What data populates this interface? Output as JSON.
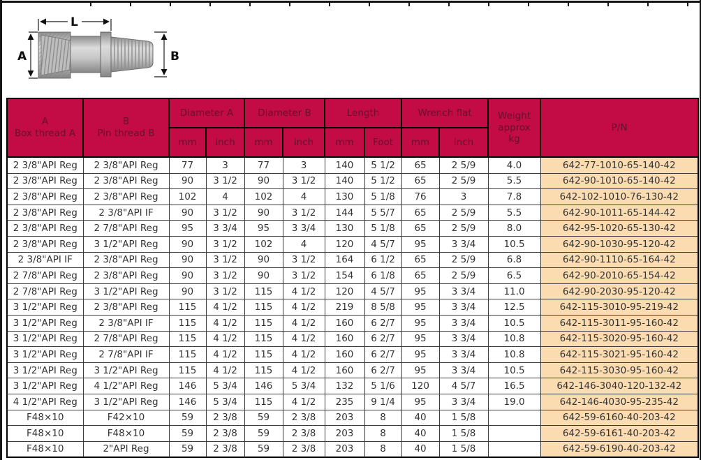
{
  "colors": {
    "header_bg": "#C30B45",
    "header_text": "#67102C",
    "pn_bg": "#FBDCB1",
    "body_text": "#333333",
    "frame": "#151515"
  },
  "diagram": {
    "label_a": "A",
    "label_b": "B",
    "label_l": "L"
  },
  "table": {
    "header": {
      "col_a": "A\nBox thread A",
      "col_b": "B\nPin thread B",
      "diameter_a": "Diameter A",
      "diameter_b": "Diameter B",
      "length": "Length",
      "wrench_flat": "Wrench flat",
      "weight": "Weight\napprox\nkg",
      "pn": "P/N",
      "units": [
        "mm",
        "inch",
        "mm",
        "inch",
        "mm",
        "Foot",
        "mm",
        "inch"
      ]
    },
    "col_keys": [
      "box-thread-a",
      "pin-thread-b",
      "dia-a-mm",
      "dia-a-inch",
      "dia-b-mm",
      "dia-b-inch",
      "length-mm",
      "length-foot",
      "wrench-mm",
      "wrench-inch",
      "weight-kg",
      "pn"
    ],
    "rows": [
      [
        "2 3/8\"API Reg",
        "2 3/8\"API Reg",
        "77",
        "3",
        "77",
        "3",
        "140",
        "5 1/2",
        "65",
        "2 5/9",
        "4.0",
        "642-77-1010-65-140-42"
      ],
      [
        "2 3/8\"API Reg",
        "2 3/8\"API Reg",
        "90",
        "3 1/2",
        "90",
        "3 1/2",
        "140",
        "5 1/2",
        "65",
        "2 5/9",
        "5.5",
        "642-90-1010-65-140-42"
      ],
      [
        "2 3/8\"API Reg",
        "2 3/8\"API Reg",
        "102",
        "4",
        "102",
        "4",
        "130",
        "5 1/8",
        "76",
        "3",
        "7.8",
        "642-102-1010-76-130-42"
      ],
      [
        "2 3/8\"API Reg",
        "2 3/8\"API IF",
        "90",
        "3 1/2",
        "90",
        "3 1/2",
        "144",
        "5 5/7",
        "65",
        "2 5/9",
        "5.5",
        "642-90-1011-65-144-42"
      ],
      [
        "2 3/8\"API Reg",
        "2 7/8\"API Reg",
        "95",
        "3 3/4",
        "95",
        "3 3/4",
        "130",
        "5 1/8",
        "65",
        "2 5/9",
        "8.0",
        "642-95-1020-65-130-42"
      ],
      [
        "2 3/8\"API Reg",
        "3 1/2\"API Reg",
        "90",
        "3 1/2",
        "102",
        "4",
        "120",
        "4 5/7",
        "95",
        "3 3/4",
        "10.5",
        "642-90-1030-95-120-42"
      ],
      [
        "2 3/8\"API IF",
        "2 3/8\"API Reg",
        "90",
        "3 1/2",
        "90",
        "3 1/2",
        "164",
        "6 1/2",
        "65",
        "2 5/9",
        "6.8",
        "642-90-1110-65-164-42"
      ],
      [
        "2 7/8\"API Reg",
        "2 3/8\"API Reg",
        "90",
        "3 1/2",
        "90",
        "3 1/2",
        "154",
        "6 1/8",
        "65",
        "2 5/9",
        "6.5",
        "642-90-2010-65-154-42"
      ],
      [
        "2 7/8\"API Reg",
        "3 1/2\"API Reg",
        "90",
        "3 1/2",
        "115",
        "4 1/2",
        "120",
        "4 5/7",
        "95",
        "3 3/4",
        "11.0",
        "642-90-2030-95-120-42"
      ],
      [
        "3 1/2\"API Reg",
        "2 3/8\"API Reg",
        "115",
        "4 1/2",
        "115",
        "4 1/2",
        "219",
        "8 5/8",
        "95",
        "3 3/4",
        "12.5",
        "642-115-3010-95-219-42"
      ],
      [
        "3 1/2\"API Reg",
        "2 3/8\"API IF",
        "115",
        "4 1/2",
        "115",
        "4 1/2",
        "160",
        "6 2/7",
        "95",
        "3 3/4",
        "10.5",
        "642-115-3011-95-160-42"
      ],
      [
        "3 1/2\"API Reg",
        "2 7/8\"API Reg",
        "115",
        "4 1/2",
        "115",
        "4 1/2",
        "160",
        "6 2/7",
        "95",
        "3 3/4",
        "10.8",
        "642-115-3020-95-160-42"
      ],
      [
        "3 1/2\"API Reg",
        "2 7/8\"API IF",
        "115",
        "4 1/2",
        "115",
        "4 1/2",
        "160",
        "6 2/7",
        "95",
        "3 3/4",
        "10.8",
        "642-115-3021-95-160-42"
      ],
      [
        "3 1/2\"API Reg",
        "3 1/2\"API Reg",
        "115",
        "4 1/2",
        "115",
        "4 1/2",
        "160",
        "6 2/7",
        "95",
        "3 3/4",
        "10.5",
        "642-115-3030-95-160-42"
      ],
      [
        "3 1/2\"API Reg",
        "4 1/2\"API Reg",
        "146",
        "5 3/4",
        "146",
        "5 3/4",
        "132",
        "5 1/6",
        "120",
        "4 5/7",
        "16.5",
        "642-146-3040-120-132-42"
      ],
      [
        "4 1/2\"API Reg",
        "3 1/2\"API Reg",
        "146",
        "5 3/4",
        "115",
        "4 1/2",
        "235",
        "9 1/4",
        "95",
        "3 3/4",
        "19.0",
        "642-146-4030-95-235-42"
      ],
      [
        "F48×10",
        "F42×10",
        "59",
        "2 3/8",
        "59",
        "2 3/8",
        "203",
        "8",
        "40",
        "1 5/8",
        "",
        "642-59-6160-40-203-42"
      ],
      [
        "F48×10",
        "F48×10",
        "59",
        "2 3/8",
        "59",
        "2 3/8",
        "203",
        "8",
        "40",
        "1 5/8",
        "",
        "642-59-6161-40-203-42"
      ],
      [
        "F48×10",
        "2\"API Reg",
        "59",
        "2 3/8",
        "59",
        "2 3/8",
        "203",
        "8",
        "40",
        "1 5/8",
        "",
        "642-59-6190-40-203-42"
      ]
    ]
  }
}
